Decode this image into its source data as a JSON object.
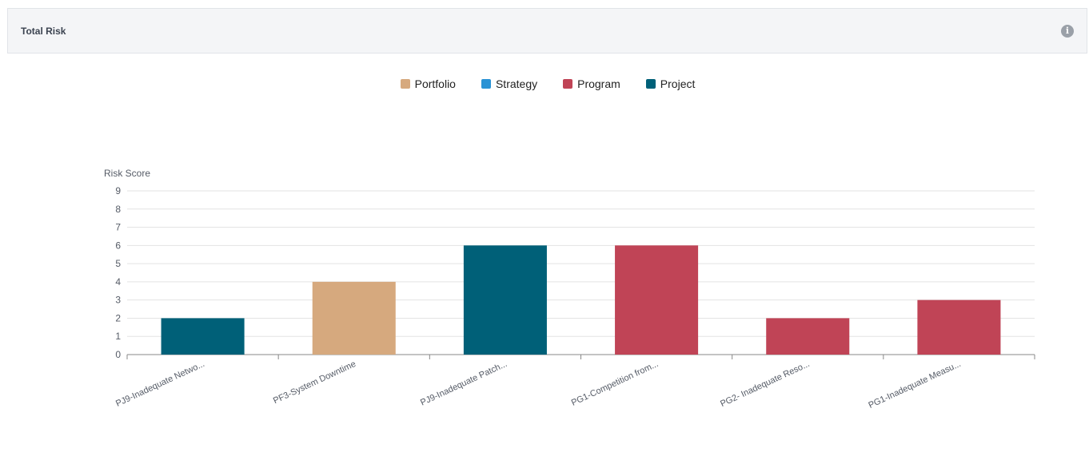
{
  "panel": {
    "title": "Total Risk",
    "info_icon": "info-icon"
  },
  "legend": [
    {
      "label": "Portfolio",
      "color": "#d6a97e"
    },
    {
      "label": "Strategy",
      "color": "#2a93d5"
    },
    {
      "label": "Program",
      "color": "#c04456"
    },
    {
      "label": "Project",
      "color": "#006078"
    }
  ],
  "chart_data": {
    "type": "bar",
    "title": "Total Risk",
    "xlabel": "",
    "ylabel": "Risk Score",
    "ylim": [
      0,
      9
    ],
    "yticks": [
      0,
      1,
      2,
      3,
      4,
      5,
      6,
      7,
      8,
      9
    ],
    "grid": true,
    "legend_position": "top-center",
    "categories": [
      "PJ9-Inadequate Netwo...",
      "PF3-System Downtime",
      "PJ9-Inadequate Patch...",
      "PG1-Competition from...",
      "PG2- Inadequate Reso...",
      "PG1-Inadequate Measu..."
    ],
    "values": [
      2,
      4,
      6,
      6,
      2,
      3
    ],
    "bar_series": [
      "Project",
      "Portfolio",
      "Project",
      "Program",
      "Program",
      "Program"
    ],
    "series_colors": {
      "Portfolio": "#d6a97e",
      "Strategy": "#2a93d5",
      "Program": "#c04456",
      "Project": "#006078"
    }
  }
}
